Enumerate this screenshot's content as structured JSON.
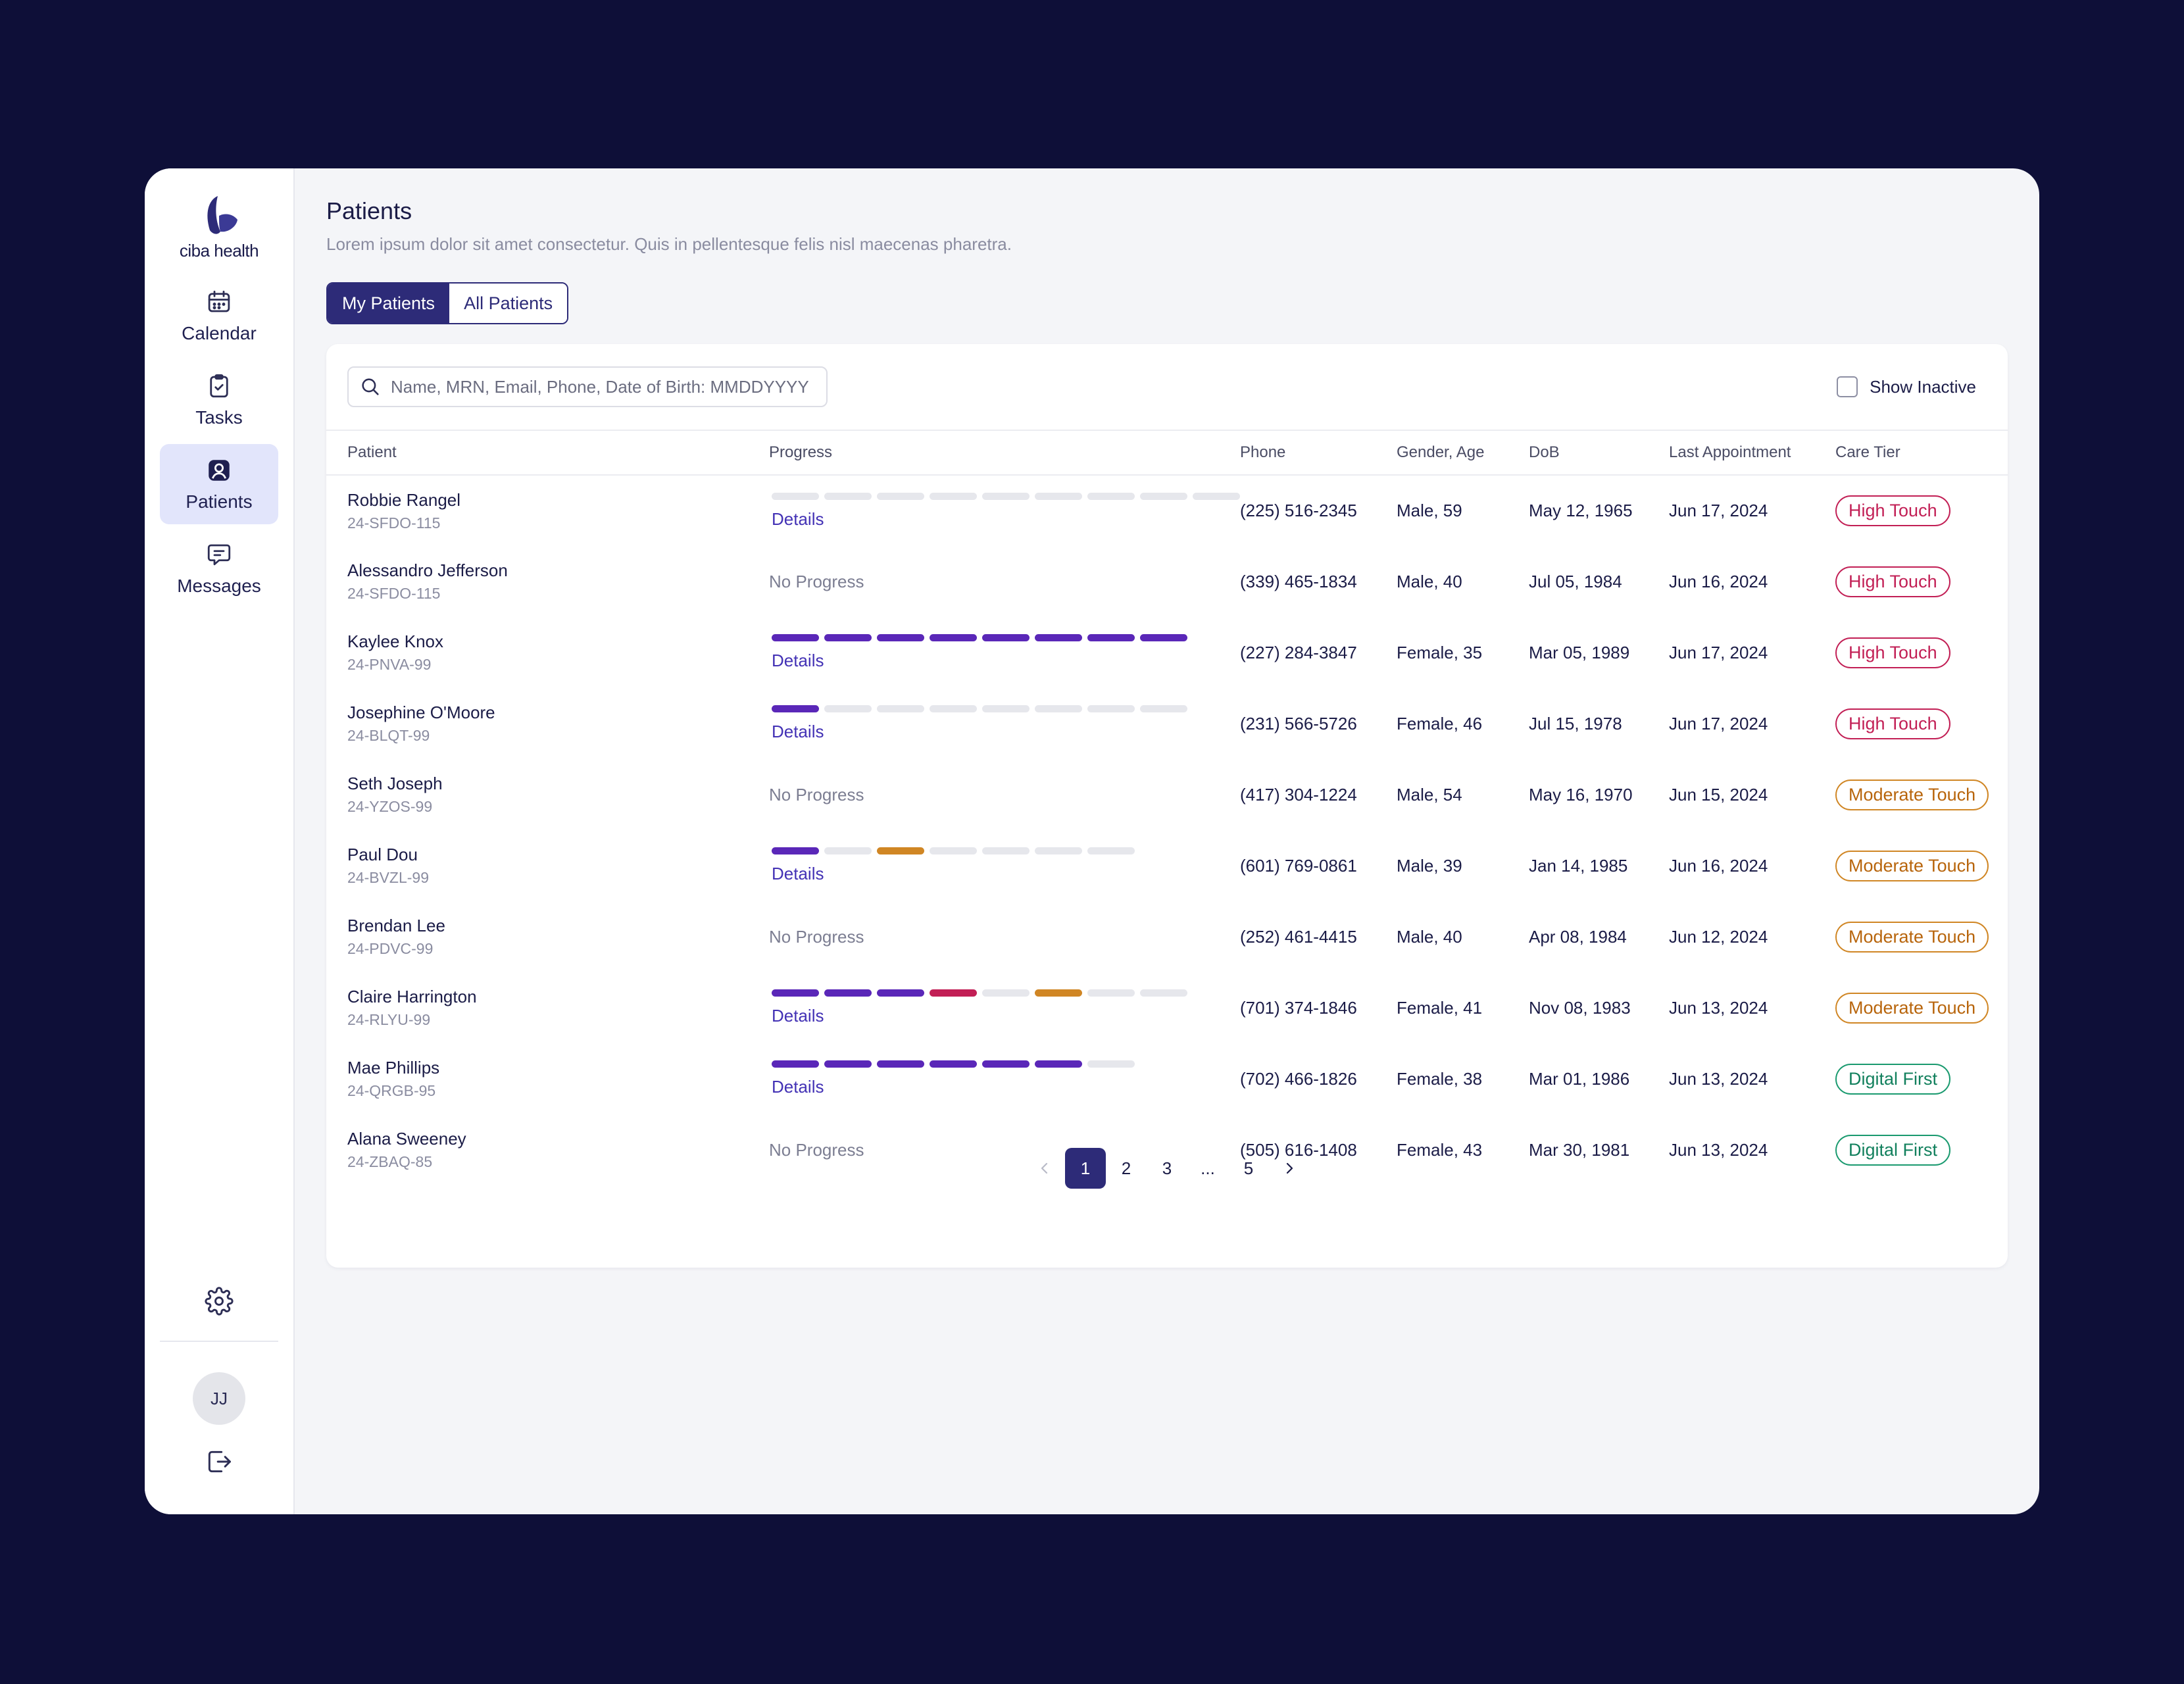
{
  "brand": {
    "name": "ciba health"
  },
  "colors": {
    "primary": "#2d2b78",
    "purple": "#5a27b8",
    "red": "#c21f55",
    "orange": "#d08624",
    "green": "#1a9a6f",
    "empty": "#e6e7ec"
  },
  "nav": {
    "items": [
      {
        "id": "calendar",
        "label": "Calendar",
        "icon": "calendar-icon",
        "active": false
      },
      {
        "id": "tasks",
        "label": "Tasks",
        "icon": "clipboard-check-icon",
        "active": false
      },
      {
        "id": "patients",
        "label": "Patients",
        "icon": "user-badge-icon",
        "active": true
      },
      {
        "id": "messages",
        "label": "Messages",
        "icon": "message-icon",
        "active": false
      }
    ],
    "avatar_initials": "JJ"
  },
  "page": {
    "title": "Patients",
    "subtitle": "Lorem ipsum dolor sit amet consectetur. Quis in pellentesque felis nisl maecenas pharetra."
  },
  "tabs": [
    {
      "label": "My Patients",
      "active": true
    },
    {
      "label": "All Patients",
      "active": false
    }
  ],
  "search": {
    "placeholder": "Name, MRN, Email, Phone, Date of Birth: MMDDYYYY",
    "value": ""
  },
  "filters": {
    "show_inactive_label": "Show Inactive",
    "show_inactive_checked": false
  },
  "table": {
    "columns": [
      "Patient",
      "Progress",
      "Phone",
      "Gender, Age",
      "DoB",
      "Last Appointment",
      "Care Tier"
    ],
    "details_label": "Details",
    "no_progress_label": "No Progress",
    "rows": [
      {
        "name": "Robbie Rangel",
        "mrn": "24-SFDO-115",
        "progress": [
          "e",
          "e",
          "e",
          "e",
          "e",
          "e",
          "e",
          "e",
          "e"
        ],
        "phone": "(225) 516-2345",
        "gender_age": "Male, 59",
        "dob": "May 12, 1965",
        "last_appt": "Jun 17, 2024",
        "tier": "High Touch",
        "tier_type": "high"
      },
      {
        "name": "Alessandro Jefferson",
        "mrn": "24-SFDO-115",
        "progress": null,
        "phone": "(339) 465-1834",
        "gender_age": "Male, 40",
        "dob": "Jul 05, 1984",
        "last_appt": "Jun 16, 2024",
        "tier": "High Touch",
        "tier_type": "high"
      },
      {
        "name": "Kaylee Knox",
        "mrn": "24-PNVA-99",
        "progress": [
          "p",
          "p",
          "p",
          "p",
          "p",
          "p",
          "p",
          "p"
        ],
        "phone": "(227) 284-3847",
        "gender_age": "Female, 35",
        "dob": "Mar 05, 1989",
        "last_appt": "Jun 17, 2024",
        "tier": "High Touch",
        "tier_type": "high"
      },
      {
        "name": "Josephine O'Moore",
        "mrn": "24-BLQT-99",
        "progress": [
          "p",
          "e",
          "e",
          "e",
          "e",
          "e",
          "e",
          "e"
        ],
        "phone": "(231) 566-5726",
        "gender_age": "Female, 46",
        "dob": "Jul 15, 1978",
        "last_appt": "Jun 17, 2024",
        "tier": "High Touch",
        "tier_type": "high"
      },
      {
        "name": "Seth Joseph",
        "mrn": "24-YZOS-99",
        "progress": null,
        "phone": "(417) 304-1224",
        "gender_age": "Male, 54",
        "dob": "May 16, 1970",
        "last_appt": "Jun 15, 2024",
        "tier": "Moderate Touch",
        "tier_type": "moderate"
      },
      {
        "name": "Paul Dou",
        "mrn": "24-BVZL-99",
        "progress": [
          "p",
          "e",
          "o",
          "e",
          "e",
          "e",
          "e"
        ],
        "phone": "(601) 769-0861",
        "gender_age": "Male, 39",
        "dob": "Jan 14, 1985",
        "last_appt": "Jun 16, 2024",
        "tier": "Moderate Touch",
        "tier_type": "moderate"
      },
      {
        "name": "Brendan Lee",
        "mrn": "24-PDVC-99",
        "progress": null,
        "phone": "(252) 461-4415",
        "gender_age": "Male, 40",
        "dob": "Apr 08, 1984",
        "last_appt": "Jun 12, 2024",
        "tier": "Moderate Touch",
        "tier_type": "moderate"
      },
      {
        "name": "Claire Harrington",
        "mrn": "24-RLYU-99",
        "progress": [
          "p",
          "p",
          "p",
          "r",
          "e",
          "o",
          "e",
          "e"
        ],
        "phone": "(701) 374-1846",
        "gender_age": "Female, 41",
        "dob": "Nov 08, 1983",
        "last_appt": "Jun 13, 2024",
        "tier": "Moderate Touch",
        "tier_type": "moderate"
      },
      {
        "name": "Mae Phillips",
        "mrn": "24-QRGB-95",
        "progress": [
          "p",
          "p",
          "p",
          "p",
          "p",
          "p",
          "e"
        ],
        "phone": "(702) 466-1826",
        "gender_age": "Female, 38",
        "dob": "Mar 01, 1986",
        "last_appt": "Jun 13, 2024",
        "tier": "Digital First",
        "tier_type": "digital"
      },
      {
        "name": "Alana Sweeney",
        "mrn": "24-ZBAQ-85",
        "progress": null,
        "phone": "(505) 616-1408",
        "gender_age": "Female, 43",
        "dob": "Mar 30, 1981",
        "last_appt": "Jun 13, 2024",
        "tier": "Digital First",
        "tier_type": "digital"
      }
    ]
  },
  "pagination": {
    "pages": [
      "1",
      "2",
      "3",
      "...",
      "5"
    ],
    "current": "1"
  }
}
